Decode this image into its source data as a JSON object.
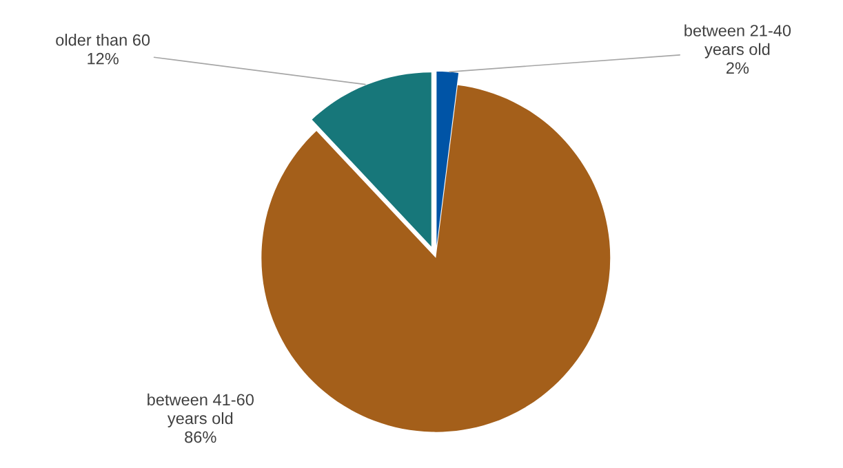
{
  "chart_data": {
    "type": "pie",
    "categories": [
      "between 21-40\nyears old",
      "between 41-60\nyears old",
      "older than 60"
    ],
    "values": [
      2,
      86,
      12
    ],
    "colors": [
      "#0054a6",
      "#a45f1a",
      "#17777a"
    ],
    "value_labels": [
      "2%",
      "86%",
      "12%"
    ],
    "legend": false
  }
}
